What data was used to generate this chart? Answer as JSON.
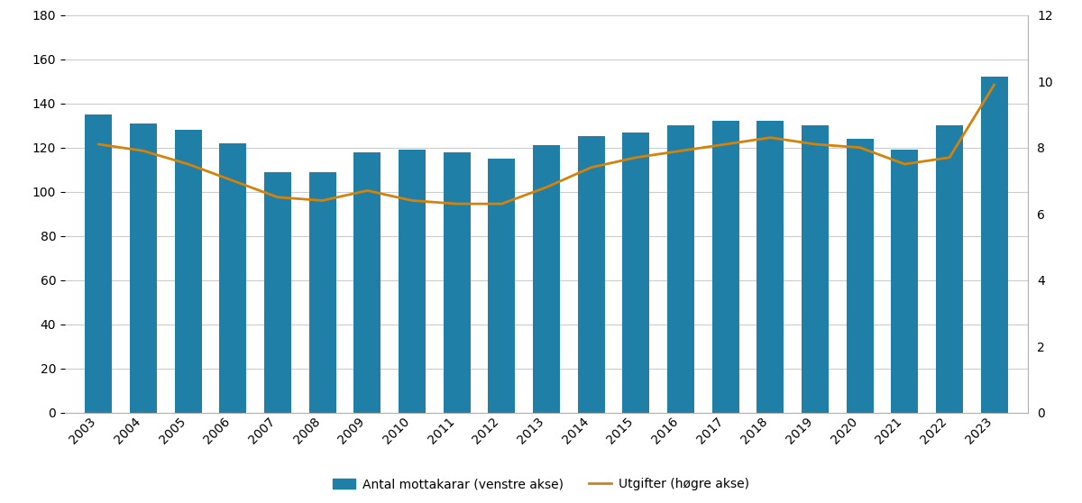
{
  "years": [
    2003,
    2004,
    2005,
    2006,
    2007,
    2008,
    2009,
    2010,
    2011,
    2012,
    2013,
    2014,
    2015,
    2016,
    2017,
    2018,
    2019,
    2020,
    2021,
    2022,
    2023
  ],
  "mottakarar": [
    135,
    131,
    128,
    122,
    109,
    109,
    118,
    119,
    118,
    115,
    121,
    125,
    127,
    130,
    132,
    132,
    130,
    124,
    119,
    130,
    152
  ],
  "utgifter": [
    8.1,
    7.9,
    7.5,
    7.0,
    6.5,
    6.4,
    6.7,
    6.4,
    6.3,
    6.3,
    6.8,
    7.4,
    7.7,
    7.9,
    8.1,
    8.3,
    8.1,
    8.0,
    7.5,
    7.7,
    9.9
  ],
  "bar_color": "#1f7fa6",
  "line_color": "#d4820a",
  "ylim_left": [
    0,
    180
  ],
  "ylim_right": [
    0,
    12
  ],
  "yticks_left": [
    0,
    20,
    40,
    60,
    80,
    100,
    120,
    140,
    160,
    180
  ],
  "yticks_right": [
    0,
    2,
    4,
    6,
    8,
    10,
    12
  ],
  "legend_bar": "Antal mottakarar (venstre akse)",
  "legend_line": "Utgifter (høgre akse)",
  "background_color": "#ffffff",
  "bar_width": 0.6,
  "line_width": 2.0
}
